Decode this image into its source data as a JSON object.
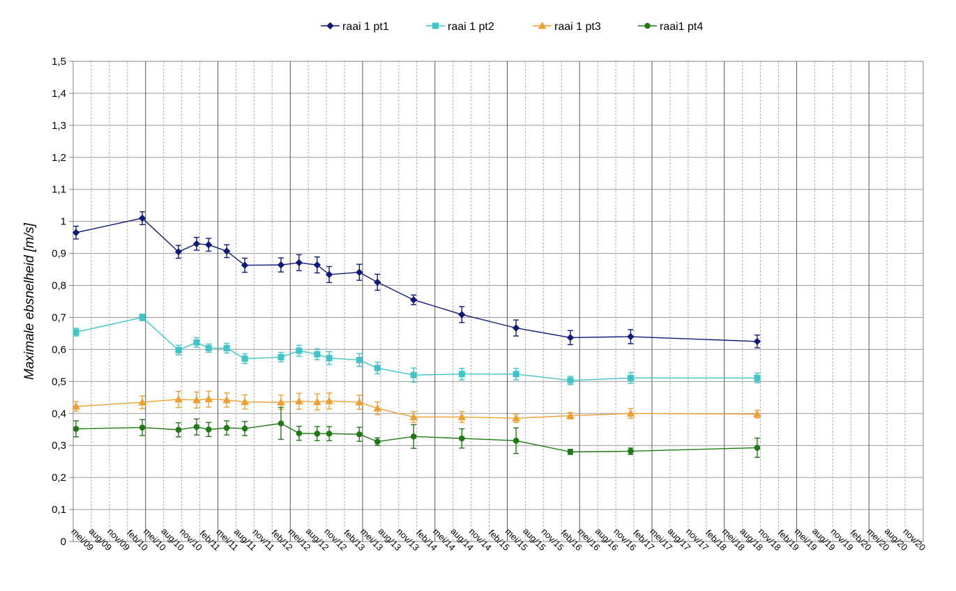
{
  "chart_data": {
    "type": "line",
    "title": "",
    "xlabel": "",
    "ylabel": "Maximale ebsnelheid [m/s]",
    "ylim": [
      0,
      1.5
    ],
    "ytick_step": 0.1,
    "ytick_labels": [
      "0",
      "0,1",
      "0,2",
      "0,3",
      "0,4",
      "0,5",
      "0,6",
      "0,7",
      "0,8",
      "0,9",
      "1",
      "1,1",
      "1,2",
      "1,3",
      "1,4",
      "1,5"
    ],
    "grid": true,
    "legend_position": "top",
    "x_ticks": [
      "mei/09",
      "aug/09",
      "nov/09",
      "feb/10",
      "mei/10",
      "aug/10",
      "nov/10",
      "feb/11",
      "mei/11",
      "aug/11",
      "nov/11",
      "feb/12",
      "mei/12",
      "aug/12",
      "nov/12",
      "feb/13",
      "mei/13",
      "aug/13",
      "nov/13",
      "feb/14",
      "mei/14",
      "aug/14",
      "nov/14",
      "feb/15",
      "mei/15",
      "aug/15",
      "nov/15",
      "feb/16",
      "mei/16",
      "aug/16",
      "nov/16",
      "feb/17",
      "mei/17",
      "aug/17",
      "nov/17",
      "feb/18",
      "mei/18",
      "aug/18",
      "nov/18",
      "feb/19",
      "mei/19",
      "aug/19",
      "nov/19",
      "feb/20",
      "mei/20",
      "aug/20",
      "nov/20"
    ],
    "x_dates": [
      "2009-05",
      "2010-04",
      "2010-10",
      "2011-01",
      "2011-03",
      "2011-06",
      "2011-09",
      "2012-03",
      "2012-06",
      "2012-09",
      "2012-11",
      "2013-04",
      "2013-07",
      "2014-01",
      "2014-09",
      "2015-06",
      "2016-03",
      "2017-01",
      "2017-10",
      "2018-10"
    ],
    "series": [
      {
        "name": "raai 1 pt1",
        "color": "#0d1a7a",
        "marker": "diamond",
        "values": [
          0.965,
          1.01,
          0.905,
          0.93,
          0.927,
          0.907,
          0.863,
          0.864,
          0.871,
          0.864,
          0.834,
          0.841,
          0.81,
          0.755,
          0.709,
          0.667,
          0.637,
          0.64,
          0.625
        ],
        "errors": [
          0.02,
          0.02,
          0.02,
          0.02,
          0.02,
          0.02,
          0.022,
          0.022,
          0.025,
          0.025,
          0.025,
          0.025,
          0.025,
          0.015,
          0.025,
          0.025,
          0.022,
          0.022,
          0.02
        ],
        "x_index": [
          0,
          1,
          2,
          3,
          4,
          5,
          6,
          7,
          8,
          9,
          10,
          11,
          12,
          13,
          14,
          15,
          16,
          17,
          19
        ]
      },
      {
        "name": "raai 1 pt2",
        "color": "#3fc4c8",
        "marker": "square",
        "values": [
          0.654,
          0.7,
          0.598,
          0.622,
          0.604,
          0.604,
          0.571,
          0.576,
          0.596,
          0.585,
          0.573,
          0.567,
          0.542,
          0.52,
          0.523,
          0.523,
          0.503,
          0.511,
          0.511
        ],
        "errors": [
          0.012,
          0.01,
          0.015,
          0.015,
          0.013,
          0.015,
          0.015,
          0.015,
          0.017,
          0.017,
          0.02,
          0.02,
          0.018,
          0.022,
          0.018,
          0.018,
          0.013,
          0.017,
          0.015
        ],
        "x_index": [
          0,
          1,
          2,
          3,
          4,
          5,
          6,
          7,
          8,
          9,
          10,
          11,
          12,
          13,
          14,
          15,
          16,
          17,
          19
        ]
      },
      {
        "name": "raai 1 pt3",
        "color": "#f0a030",
        "marker": "triangle",
        "values": [
          0.422,
          0.435,
          0.444,
          0.442,
          0.445,
          0.442,
          0.436,
          0.435,
          0.438,
          0.436,
          0.439,
          0.435,
          0.416,
          0.389,
          0.389,
          0.385,
          0.393,
          0.4,
          0.398
        ],
        "errors": [
          0.015,
          0.02,
          0.025,
          0.025,
          0.025,
          0.022,
          0.022,
          0.022,
          0.025,
          0.025,
          0.025,
          0.022,
          0.02,
          0.017,
          0.017,
          0.013,
          0.01,
          0.015,
          0.012
        ],
        "x_index": [
          0,
          1,
          2,
          3,
          4,
          5,
          6,
          7,
          8,
          9,
          10,
          11,
          12,
          13,
          14,
          15,
          16,
          17,
          19
        ]
      },
      {
        "name": "raai1 pt4",
        "color": "#1f7a14",
        "marker": "circle",
        "values": [
          0.352,
          0.356,
          0.349,
          0.358,
          0.35,
          0.355,
          0.353,
          0.369,
          0.338,
          0.337,
          0.337,
          0.335,
          0.312,
          0.328,
          0.322,
          0.315,
          0.28,
          0.282,
          0.293
        ],
        "errors": [
          0.025,
          0.025,
          0.022,
          0.025,
          0.022,
          0.022,
          0.022,
          0.05,
          0.022,
          0.022,
          0.022,
          0.022,
          0.012,
          0.037,
          0.03,
          0.04,
          0.008,
          0.01,
          0.03
        ],
        "x_index": [
          0,
          1,
          2,
          3,
          4,
          5,
          6,
          7,
          8,
          9,
          10,
          11,
          12,
          13,
          14,
          15,
          16,
          17,
          19
        ]
      }
    ]
  }
}
